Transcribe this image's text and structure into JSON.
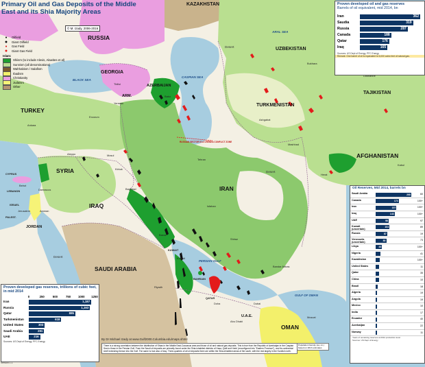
{
  "title": "Primary Oil and Gas Deposits of the Middle East and its Shia Majority Areas",
  "copyright": "© M. Izady, 2006-2016",
  "legend": {
    "deposits": [
      {
        "label": "Oilfield",
        "icon": "oilfield-icon",
        "color": "#111111"
      },
      {
        "label": "Giant Oilfield",
        "icon": "giant-oilfield-icon",
        "color": "#111111"
      },
      {
        "label": "Gas Field",
        "icon": "gas-field-icon",
        "color": "#e31b1b"
      },
      {
        "label": "Giant Gas Field",
        "icon": "giant-gas-field-icon",
        "color": "#e31b1b"
      }
    ],
    "religion_heading": "Islam:",
    "religions": [
      {
        "label": "Shiism (to include Alevis, Alawites et al)",
        "color": "#1e9f2f"
      },
      {
        "label": "Sunnism (all denominations)",
        "color": "#b9df90"
      },
      {
        "label": "Wahhabism / Salafism",
        "color": "#7c5a2c"
      },
      {
        "label": "Ibadism",
        "color": "#f3f06b"
      },
      {
        "label": "Christianity",
        "color": "#ea9ee0"
      },
      {
        "label": "Judaism",
        "color": "#f6f377"
      },
      {
        "label": "Other",
        "color": "#b59470"
      }
    ]
  },
  "labels": {
    "countries": {
      "russia": "RUSSIA",
      "kazakhstan": "KAZAKHSTAN",
      "uzbekistan": "UZBEKISTAN",
      "georgia": "GEORGIA",
      "arm": "ARM.",
      "azerbaijan": "AZERBAIJAN",
      "turkmenistan": "TURKMENISTAN",
      "tajikistan": "TAJIKISTAN",
      "turkey": "TURKEY",
      "syria": "SYRIA",
      "iraq": "IRAQ",
      "iran": "IRAN",
      "afghanistan": "AFGHANISTAN",
      "saudi_arabia": "SAUDI ARABIA",
      "oman": "OMAN",
      "uae": "U.A.E.",
      "jordan": "JORDAN",
      "israel": "ISRAEL",
      "lebanon": "LEBANON",
      "cyprus": "CYPRUS",
      "kuwait": "KUWAIT",
      "qatar": "QATAR",
      "bahrain": "BAHRAIN",
      "palestine": "PALEST."
    },
    "seas": {
      "black_sea": "BLACK SEA",
      "caspian_sea": "CASPIAN SEA",
      "aral_sea": "ARAL SEA",
      "persian_gulf": "PERSIAN GULF",
      "gulf_of_oman": "GULF OF OMAN"
    },
    "caspian_note": "RUSSIAN SECTOR IS A CRENEA CONFLICT ZONE",
    "deserts": [
      "Desert",
      "Desert",
      "Desert"
    ],
    "cities": [
      "Tbilisi",
      "Baku",
      "Yerevan",
      "Tehran",
      "Ashgabat",
      "Tashkent",
      "Bukhara",
      "Mashhad",
      "Herat",
      "Kabul",
      "Baghdad",
      "Damascus",
      "Beirut",
      "Amman",
      "Jerusalem",
      "Riyadh",
      "Doha",
      "Abu Dhabi",
      "Dubai",
      "Muscat",
      "Kirkuk",
      "Mosul",
      "Basra",
      "Ankara",
      "Isfahan",
      "Shiraz",
      "Bandar Abbas",
      "Dushanbe",
      "Erzurum",
      "Aleppo",
      "Kuwait"
    ]
  },
  "reserves_panel": {
    "title": "Proven developed oil and gas reserves",
    "subtitle": "Barrels of oil equivalent, mid 2014, bn",
    "rows": [
      {
        "country": "Iran",
        "value": 362
      },
      {
        "country": "Saudia",
        "value": 319
      },
      {
        "country": "Russia",
        "value": 287
      },
      {
        "country": "Canada",
        "value": 188
      },
      {
        "country": "Qatar",
        "value": 176
      },
      {
        "country": "Iraq",
        "value": 165
      }
    ],
    "max": 362,
    "source": "Sources: US Dept of Energy, PFC Energy",
    "note": "Remark: One barrel of oil is equivalent to 6,000 cubic feet of natural gas."
  },
  "oil_panel": {
    "title": "Oil Reserves, Mid 2014, barrels bn",
    "max": 268,
    "rows": [
      {
        "country": "Saudi Arabia",
        "value": 268,
        "years": "60"
      },
      {
        "country": "Canada",
        "value": 174,
        "years": "100+"
      },
      {
        "country": "Iran",
        "value": 157,
        "years": "100+"
      },
      {
        "country": "Iraq",
        "value": 143,
        "years": "100+"
      },
      {
        "country": "UAE",
        "value": 98,
        "years": "97"
      },
      {
        "country": "Kuwait (uncertain)",
        "value": 104,
        "years": "89"
      },
      {
        "country": "Russia",
        "value": 87,
        "years": "19"
      },
      {
        "country": "Venezuela (uncertain)",
        "value": 80,
        "years": "73"
      },
      {
        "country": "Libya",
        "value": 48,
        "years": "100+"
      },
      {
        "country": "Nigeria",
        "value": 37,
        "years": "41"
      },
      {
        "country": "Kazakhstan",
        "value": 30,
        "years": "100+"
      },
      {
        "country": "United States",
        "value": 26,
        "years": "11"
      },
      {
        "country": "Qatar",
        "value": 25,
        "years": "35"
      },
      {
        "country": "China",
        "value": 24,
        "years": "10"
      },
      {
        "country": "Brazil",
        "value": 15,
        "years": "18"
      },
      {
        "country": "Algeria",
        "value": 12,
        "years": "19"
      },
      {
        "country": "Angola",
        "value": 10,
        "years": "19"
      },
      {
        "country": "Mexico",
        "value": 10,
        "years": "10"
      },
      {
        "country": "India",
        "value": 6,
        "years": "17"
      },
      {
        "country": "Ecuador",
        "value": 8,
        "years": "40"
      },
      {
        "country": "Azerbaijan",
        "value": 7,
        "years": "22"
      },
      {
        "country": "Norway",
        "value": 6,
        "years": "11"
      }
    ],
    "years_note": "Years of remaining reserves at 2014 production level",
    "source": "Sources: US Dept of Energy"
  },
  "gas_panel": {
    "title": "Proven developed gas reserves, trillions of cubic feet, in mid 2014",
    "axis": [
      0,
      250,
      500,
      750,
      1000,
      1250
    ],
    "max": 1250,
    "rows": [
      {
        "country": "Iran",
        "value": 1187
      },
      {
        "country": "Russia",
        "value": 1163
      },
      {
        "country": "Qatar",
        "value": 885
      },
      {
        "country": "Turkmenistan",
        "value": 618
      },
      {
        "country": "United States",
        "value": 303
      },
      {
        "country": "Saudi Arabia",
        "value": 291
      },
      {
        "country": "UAE",
        "value": 216
      }
    ],
    "source": "Sources: US Dept of Energy, PFC Energy"
  },
  "credit": "By Dr Michael Izady at www.Gulf2000.Columbia.edu/maps.shtml",
  "footnote": "There is a strong correlation between the distribution of Shias in the Middle East-Caucasus area and those of oil and natural gas deposits. This is true from the Republic of Azerbaijan in the Caspian Sea to those in the Persian Gulf. From the Saudi oil deposits are primarily found under the Shia-inhabited districts of Hasa, Qatif and Hofuf (reconfigured into \"Eastern Province\"), and its continental shelf extending thence into the Gulf. The same is true also of Iraq. Three-quarters of all oil deposits there are within the Shia-inhabited areas of the south, with the rest largely in the Kurdish north.",
  "scale_note": "Population Density (sq. mi.) based on 2013 estimates",
  "version": "Version 1.1"
}
